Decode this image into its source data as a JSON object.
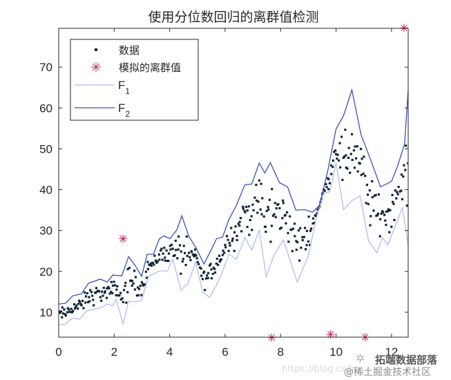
{
  "chart_data": {
    "type": "scatter",
    "title": "使用分位数回归的离群值检测",
    "xlabel": "",
    "ylabel": "",
    "xlim": [
      0,
      12.6
    ],
    "ylim": [
      3.9,
      79.5
    ],
    "xticks": [
      0,
      2,
      4,
      6,
      8,
      10,
      12
    ],
    "yticks": [
      10,
      20,
      30,
      40,
      50,
      60,
      70
    ],
    "grid": false,
    "legend_position": "upper left",
    "legend": [
      {
        "label": "数据",
        "marker": "point",
        "color": "#0f2538"
      },
      {
        "label": "模拟的离群值",
        "marker": "asterisk",
        "color": "#c8365f"
      },
      {
        "label": "F",
        "subscript": "1",
        "line": true,
        "color": "#aab8ee"
      },
      {
        "label": "F",
        "subscript": "2",
        "line": true,
        "color": "#3550b8"
      }
    ],
    "series": [
      {
        "name": "F2",
        "kind": "line",
        "color": "#3550b8",
        "x": [
          0.0,
          0.25,
          0.5,
          0.82,
          1.07,
          1.5,
          1.75,
          1.95,
          2.27,
          2.52,
          2.77,
          2.99,
          3.19,
          3.42,
          3.62,
          3.79,
          4.01,
          4.26,
          4.44,
          4.69,
          4.94,
          5.24,
          5.49,
          5.69,
          5.91,
          6.13,
          6.41,
          6.71,
          6.96,
          7.23,
          7.43,
          7.63,
          7.96,
          8.25,
          8.55,
          8.88,
          9.15,
          9.4,
          9.7,
          10.0,
          10.27,
          10.57,
          10.9,
          11.27,
          11.6,
          12.0,
          12.22,
          12.47,
          12.62
        ],
        "y": [
          12.0,
          12.2,
          14.0,
          14.5,
          17.1,
          18.1,
          17.4,
          19.1,
          18.9,
          23.6,
          21.3,
          18.8,
          24.2,
          24.2,
          27.9,
          28.7,
          28.0,
          30.2,
          33.6,
          28.6,
          25.9,
          21.8,
          25.2,
          28.0,
          28.4,
          32.6,
          36.2,
          41.2,
          41.4,
          46.5,
          44.1,
          46.6,
          41.7,
          40.7,
          35.0,
          35.1,
          34.5,
          36.1,
          44.6,
          54.9,
          58.1,
          64.4,
          53.5,
          46.9,
          40.7,
          42.0,
          45.8,
          51.2,
          66.4
        ]
      },
      {
        "name": "F1",
        "kind": "line",
        "color": "#aab8ee",
        "x": [
          0.0,
          0.25,
          0.5,
          0.75,
          1.0,
          1.5,
          1.75,
          1.95,
          2.07,
          2.32,
          2.52,
          2.77,
          2.99,
          3.24,
          3.62,
          3.92,
          4.11,
          4.41,
          4.66,
          4.94,
          5.19,
          5.44,
          5.69,
          5.91,
          6.13,
          6.41,
          6.71,
          6.96,
          7.23,
          7.48,
          7.78,
          8.1,
          8.35,
          8.6,
          9.0,
          9.28,
          9.53,
          9.77,
          10.0,
          10.27,
          10.57,
          10.87,
          11.17,
          11.47,
          11.67,
          11.87,
          12.12,
          12.39,
          12.62
        ],
        "y": [
          6.9,
          7.1,
          8.6,
          8.3,
          10.3,
          11.1,
          12.0,
          11.6,
          13.2,
          7.1,
          12.7,
          12.5,
          13.0,
          18.8,
          20.1,
          20.1,
          23.0,
          15.4,
          17.1,
          22.2,
          14.9,
          13.7,
          16.6,
          20.0,
          24.2,
          23.0,
          28.3,
          25.2,
          30.1,
          18.8,
          24.2,
          27.7,
          22.6,
          17.4,
          23.8,
          32.8,
          39.0,
          39.5,
          46.5,
          35.1,
          37.3,
          38.5,
          27.5,
          24.5,
          28.2,
          26.5,
          30.9,
          35.6,
          25.5
        ]
      },
      {
        "name": "模拟的离群值",
        "kind": "asterisk",
        "color": "#c8365f",
        "x": [
          2.32,
          7.68,
          9.8,
          11.05,
          12.45
        ],
        "y": [
          28.0,
          3.8,
          4.6,
          3.9,
          79.6
        ]
      },
      {
        "name": "数据",
        "kind": "point",
        "color": "#0f2538",
        "count_approx": 400,
        "note_placement": "points lie between F1 and F2 curves",
        "x_range": [
          0,
          12.6
        ],
        "y_range": [
          9.5,
          56.5
        ]
      }
    ]
  },
  "watermark": {
    "url_text": "https://blog.csdn",
    "brand_text": "拓端数据部落",
    "sub_text": "@稀土掘金技术社区",
    "icon": "wechat-icon"
  }
}
